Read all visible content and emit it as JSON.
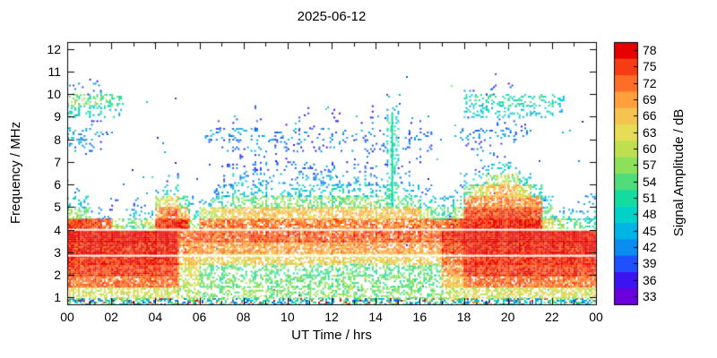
{
  "chart_data": {
    "type": "heatmap",
    "title": "2025-06-12",
    "xlabel": "UT Time / hrs",
    "ylabel": "Frequency / MHz",
    "colorbar_label": "Signal Amplitude / dB",
    "x_ticks": [
      "00",
      "02",
      "04",
      "06",
      "08",
      "10",
      "12",
      "14",
      "16",
      "18",
      "20",
      "22",
      "00"
    ],
    "x_tick_hours": [
      0,
      2,
      4,
      6,
      8,
      10,
      12,
      14,
      16,
      18,
      20,
      22,
      24
    ],
    "y_ticks": [
      "1",
      "2",
      "3",
      "4",
      "5",
      "6",
      "7",
      "8",
      "9",
      "10",
      "11",
      "12"
    ],
    "y_tick_mhz": [
      1,
      2,
      3,
      4,
      5,
      6,
      7,
      8,
      9,
      10,
      11,
      12
    ],
    "x_range_hours": [
      0,
      24
    ],
    "y_range_mhz": [
      0.7,
      12.3
    ],
    "colorbar_ticks_top_to_bottom": [
      "78",
      "75",
      "72",
      "69",
      "66",
      "63",
      "60",
      "57",
      "54",
      "51",
      "48",
      "45",
      "42",
      "39",
      "36",
      "33"
    ],
    "amplitude_levels_db": [
      33,
      36,
      39,
      42,
      45,
      48,
      51,
      54,
      57,
      60,
      63,
      66,
      69,
      72,
      75,
      78
    ],
    "level_colors": [
      "#6a00dc",
      "#3c14f0",
      "#1e50ff",
      "#0a8cf0",
      "#00b4e6",
      "#00d2c8",
      "#14dca0",
      "#50dc78",
      "#8ce05a",
      "#bee050",
      "#e6dc55",
      "#f5c350",
      "#ffa03c",
      "#ff6e28",
      "#f53c14",
      "#e60000"
    ],
    "grid": {
      "time_start_hr": 0,
      "time_step_hr": 0.5,
      "freq_start_mhz": 1.0,
      "freq_step_mhz": 0.5,
      "no_signal_value": 0,
      "amplitude_db_rows_low_to_high_freq": [
        [
          62,
          62,
          62,
          62,
          62,
          62,
          62,
          62,
          62,
          62,
          58,
          58,
          56,
          56,
          56,
          56,
          56,
          56,
          56,
          56,
          56,
          56,
          56,
          56,
          56,
          56,
          56,
          56,
          56,
          56,
          56,
          56,
          56,
          56,
          60,
          60,
          62,
          62,
          62,
          62,
          62,
          62,
          62,
          62,
          62,
          62,
          62,
          62
        ],
        [
          72,
          72,
          72,
          72,
          72,
          72,
          72,
          72,
          72,
          72,
          60,
          60,
          55,
          55,
          55,
          55,
          55,
          55,
          55,
          55,
          55,
          55,
          55,
          55,
          55,
          55,
          55,
          55,
          55,
          55,
          55,
          55,
          55,
          55,
          66,
          66,
          72,
          72,
          72,
          72,
          72,
          72,
          72,
          72,
          72,
          72,
          72,
          72
        ],
        [
          75,
          75,
          75,
          75,
          75,
          75,
          75,
          75,
          75,
          75,
          62,
          62,
          54,
          54,
          54,
          54,
          54,
          54,
          54,
          54,
          54,
          54,
          54,
          54,
          54,
          54,
          54,
          54,
          54,
          54,
          54,
          54,
          54,
          54,
          70,
          70,
          75,
          75,
          75,
          75,
          75,
          75,
          75,
          75,
          75,
          75,
          75,
          75
        ],
        [
          76,
          76,
          76,
          76,
          76,
          76,
          76,
          76,
          76,
          76,
          66,
          66,
          64,
          64,
          64,
          64,
          64,
          64,
          64,
          64,
          64,
          64,
          64,
          64,
          64,
          64,
          64,
          64,
          64,
          64,
          64,
          64,
          64,
          64,
          72,
          72,
          76,
          76,
          76,
          76,
          76,
          76,
          76,
          76,
          76,
          76,
          76,
          76
        ],
        [
          77,
          77,
          77,
          77,
          77,
          77,
          77,
          77,
          77,
          77,
          70,
          70,
          69,
          69,
          69,
          69,
          69,
          69,
          69,
          69,
          69,
          69,
          69,
          69,
          69,
          69,
          69,
          69,
          69,
          69,
          69,
          69,
          69,
          69,
          74,
          74,
          77,
          77,
          77,
          77,
          77,
          77,
          77,
          77,
          77,
          77,
          77,
          77
        ],
        [
          78,
          78,
          78,
          78,
          78,
          78,
          78,
          78,
          78,
          78,
          72,
          72,
          73,
          73,
          73,
          73,
          73,
          73,
          73,
          73,
          73,
          73,
          73,
          73,
          73,
          73,
          73,
          73,
          73,
          73,
          73,
          73,
          73,
          73,
          76,
          76,
          78,
          78,
          78,
          78,
          78,
          78,
          78,
          78,
          78,
          78,
          78,
          78
        ],
        [
          75,
          75,
          74,
          72,
          58,
          52,
          55,
          60,
          74,
          77,
          75,
          58,
          71,
          71,
          71,
          71,
          71,
          71,
          71,
          71,
          71,
          71,
          71,
          71,
          71,
          71,
          71,
          71,
          71,
          71,
          71,
          71,
          71,
          71,
          73,
          74,
          76,
          76,
          76,
          76,
          76,
          76,
          76,
          64,
          58,
          54,
          52,
          50
        ],
        [
          58,
          55,
          42,
          40,
          0,
          42,
          45,
          48,
          70,
          73,
          68,
          48,
          58,
          62,
          64,
          66,
          66,
          66,
          66,
          66,
          66,
          66,
          66,
          66,
          66,
          66,
          66,
          66,
          66,
          66,
          66,
          66,
          60,
          55,
          52,
          58,
          74,
          74,
          74,
          74,
          74,
          74,
          74,
          55,
          46,
          44,
          42,
          45
        ],
        [
          48,
          45,
          0,
          0,
          38,
          0,
          40,
          0,
          58,
          64,
          52,
          42,
          46,
          50,
          52,
          56,
          56,
          55,
          56,
          57,
          56,
          55,
          56,
          56,
          55,
          56,
          57,
          56,
          55,
          52,
          55,
          54,
          48,
          45,
          45,
          50,
          70,
          70,
          70,
          70,
          70,
          70,
          70,
          48,
          0,
          0,
          40,
          42
        ],
        [
          40,
          0,
          0,
          0,
          0,
          0,
          0,
          0,
          45,
          48,
          0,
          0,
          0,
          42,
          45,
          48,
          47,
          48,
          46,
          48,
          47,
          48,
          46,
          47,
          48,
          46,
          48,
          47,
          46,
          52,
          46,
          45,
          42,
          0,
          0,
          42,
          56,
          62,
          66,
          68,
          67,
          62,
          50,
          0,
          0,
          0,
          38,
          40
        ],
        [
          0,
          0,
          0,
          0,
          0,
          0,
          0,
          0,
          0,
          40,
          0,
          0,
          0,
          0,
          40,
          44,
          43,
          44,
          42,
          44,
          43,
          44,
          42,
          43,
          44,
          42,
          44,
          43,
          42,
          50,
          42,
          0,
          0,
          0,
          0,
          0,
          44,
          48,
          58,
          62,
          58,
          48,
          0,
          0,
          0,
          0,
          0,
          0
        ],
        [
          0,
          0,
          0,
          0,
          0,
          0,
          0,
          0,
          0,
          0,
          0,
          0,
          0,
          0,
          38,
          41,
          40,
          41,
          39,
          41,
          40,
          41,
          39,
          40,
          41,
          39,
          41,
          40,
          39,
          50,
          39,
          0,
          0,
          0,
          0,
          0,
          0,
          42,
          46,
          48,
          44,
          0,
          0,
          0,
          0,
          0,
          0,
          0
        ],
        [
          0,
          0,
          0,
          0,
          0,
          0,
          0,
          0,
          0,
          0,
          0,
          0,
          0,
          0,
          0,
          38,
          0,
          39,
          0,
          38,
          39,
          0,
          38,
          0,
          39,
          38,
          0,
          39,
          0,
          50,
          0,
          38,
          0,
          0,
          0,
          0,
          0,
          38,
          40,
          40,
          0,
          0,
          0,
          0,
          0,
          0,
          0,
          0
        ],
        [
          43,
          42,
          40,
          0,
          0,
          0,
          0,
          0,
          0,
          0,
          0,
          0,
          40,
          0,
          41,
          41,
          40,
          41,
          39,
          41,
          40,
          41,
          39,
          40,
          41,
          39,
          41,
          40,
          39,
          50,
          39,
          38,
          38,
          0,
          0,
          0,
          39,
          40,
          40,
          39,
          40,
          0,
          0,
          0,
          0,
          0,
          0,
          0
        ],
        [
          45,
          44,
          43,
          42,
          0,
          0,
          0,
          0,
          0,
          0,
          0,
          0,
          43,
          42,
          43,
          43,
          42,
          43,
          41,
          43,
          42,
          43,
          41,
          42,
          43,
          41,
          43,
          42,
          41,
          52,
          41,
          42,
          42,
          0,
          0,
          42,
          42,
          43,
          42,
          43,
          42,
          42,
          0,
          0,
          0,
          0,
          0,
          0
        ],
        [
          41,
          40,
          39,
          0,
          0,
          0,
          0,
          0,
          0,
          0,
          0,
          0,
          0,
          37,
          0,
          37,
          0,
          38,
          0,
          37,
          0,
          38,
          37,
          0,
          38,
          0,
          37,
          38,
          0,
          50,
          0,
          37,
          0,
          0,
          0,
          0,
          40,
          39,
          40,
          39,
          40,
          39,
          0,
          0,
          0,
          0,
          0,
          0
        ],
        [
          50,
          49,
          48,
          47,
          46,
          0,
          0,
          0,
          0,
          0,
          0,
          0,
          0,
          0,
          0,
          0,
          0,
          37,
          0,
          0,
          0,
          37,
          0,
          0,
          37,
          0,
          0,
          37,
          0,
          46,
          0,
          0,
          0,
          0,
          0,
          0,
          46,
          47,
          46,
          47,
          46,
          47,
          46,
          46,
          45,
          0,
          0,
          0
        ],
        [
          57,
          56,
          55,
          54,
          52,
          0,
          0,
          0,
          0,
          0,
          0,
          0,
          0,
          0,
          0,
          0,
          0,
          0,
          0,
          0,
          0,
          0,
          0,
          0,
          0,
          0,
          0,
          0,
          0,
          0,
          0,
          0,
          0,
          0,
          0,
          0,
          50,
          51,
          50,
          51,
          50,
          51,
          50,
          49,
          48,
          0,
          0,
          0
        ],
        [
          42,
          40,
          41,
          0,
          0,
          0,
          0,
          0,
          0,
          0,
          0,
          0,
          0,
          0,
          0,
          0,
          0,
          0,
          0,
          0,
          0,
          0,
          0,
          0,
          0,
          0,
          0,
          0,
          0,
          0,
          0,
          0,
          0,
          0,
          0,
          0,
          38,
          0,
          39,
          0,
          38,
          0,
          0,
          0,
          0,
          0,
          0,
          0
        ],
        [
          0,
          0,
          36,
          0,
          0,
          0,
          0,
          0,
          0,
          0,
          0,
          0,
          0,
          0,
          0,
          0,
          0,
          0,
          0,
          0,
          0,
          0,
          0,
          0,
          0,
          0,
          0,
          0,
          0,
          0,
          0,
          0,
          0,
          0,
          0,
          0,
          0,
          0,
          36,
          0,
          0,
          0,
          0,
          0,
          0,
          0,
          0,
          0
        ],
        [
          0,
          0,
          0,
          0,
          0,
          0,
          0,
          0,
          0,
          0,
          0,
          0,
          0,
          0,
          0,
          0,
          0,
          0,
          0,
          0,
          0,
          0,
          0,
          0,
          0,
          0,
          0,
          0,
          0,
          0,
          0,
          0,
          0,
          0,
          0,
          0,
          0,
          0,
          0,
          0,
          0,
          0,
          0,
          0,
          0,
          0,
          0,
          0
        ],
        [
          0,
          0,
          0,
          0,
          0,
          0,
          0,
          0,
          0,
          0,
          0,
          0,
          0,
          0,
          0,
          0,
          0,
          0,
          0,
          0,
          0,
          0,
          0,
          0,
          0,
          0,
          0,
          0,
          0,
          0,
          0,
          0,
          0,
          0,
          0,
          0,
          0,
          0,
          0,
          0,
          0,
          0,
          0,
          0,
          0,
          0,
          0,
          0
        ]
      ]
    },
    "features": {
      "white_gap_lines_mhz": [
        2.85,
        4.0
      ],
      "vertical_streak": {
        "time_hr": 14.75,
        "freq_range_mhz": [
          5.0,
          9.2
        ],
        "amplitude_db": 50
      }
    }
  }
}
